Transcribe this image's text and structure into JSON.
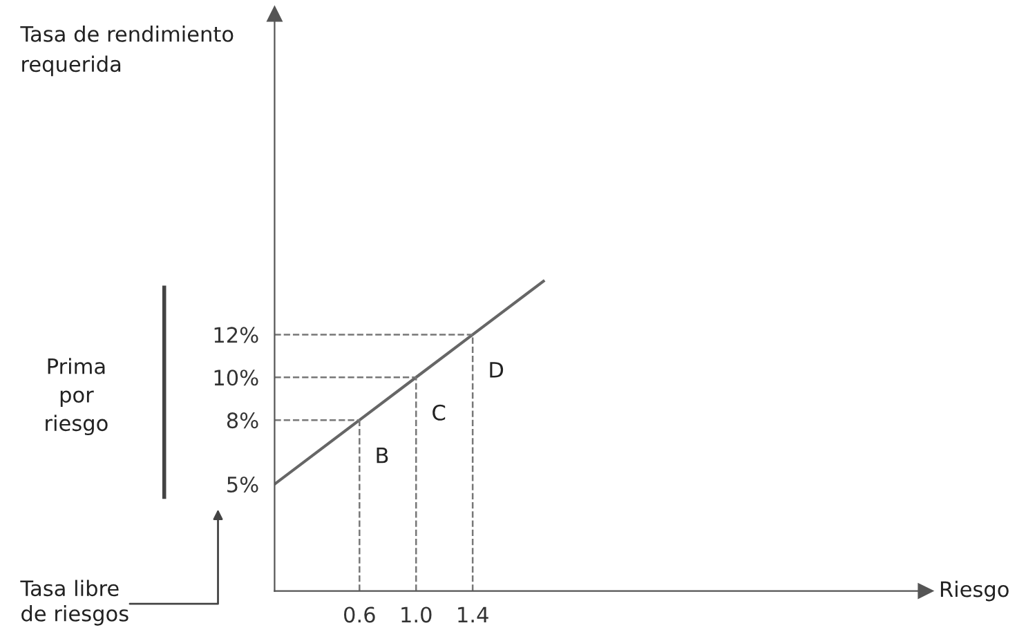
{
  "chart_data": {
    "type": "line",
    "xlabel": "Riesgo",
    "ylabel": "Tasa de rendimiento\nrequerida",
    "x": [
      0,
      0.6,
      1.0,
      1.4,
      1.9
    ],
    "series": [
      {
        "color": "#666666",
        "values": [
          5,
          8,
          10,
          12,
          14.5
        ]
      },
      {
        "color": "#777777",
        "line_style": "dashed",
        "x": [
          0.6,
          0.6
        ],
        "values": [
          0,
          8
        ]
      },
      {
        "color": "#777777",
        "line_style": "dashed",
        "x": [
          0,
          0.6
        ],
        "values": [
          8,
          8
        ]
      },
      {
        "color": "#777777",
        "line_style": "dashed",
        "x": [
          1.0,
          1.0
        ],
        "values": [
          0,
          10
        ]
      },
      {
        "color": "#777777",
        "line_style": "dashed",
        "x": [
          0,
          1.0
        ],
        "values": [
          10,
          10
        ]
      },
      {
        "color": "#777777",
        "line_style": "dashed",
        "x": [
          1.4,
          1.4
        ],
        "values": [
          0,
          12
        ]
      },
      {
        "color": "#777777",
        "line_style": "dashed",
        "x": [
          0,
          1.4
        ],
        "values": [
          12,
          12
        ]
      }
    ],
    "xlim": [
      0,
      4.6
    ],
    "ylim": [
      0,
      27
    ],
    "xticks": [
      0.6,
      {
        "value": 1.0,
        "label": "1.0"
      },
      1.4
    ],
    "yticks": [
      {
        "value": 5,
        "label": "5%"
      },
      {
        "value": 8,
        "label": "8%"
      },
      {
        "value": 10,
        "label": "10%"
      },
      {
        "value": 12,
        "label": "12%"
      }
    ],
    "grid": false,
    "marker": "none",
    "line_style": "solid",
    "annotations": [
      {
        "text": "B",
        "x": 0.6,
        "y": 8
      },
      {
        "text": "C",
        "x": 1.0,
        "y": 10
      },
      {
        "text": "D",
        "x": 1.4,
        "y": 12
      },
      "Prima\npor\nriesgo",
      "Tasa libre\nde riesgos"
    ]
  }
}
